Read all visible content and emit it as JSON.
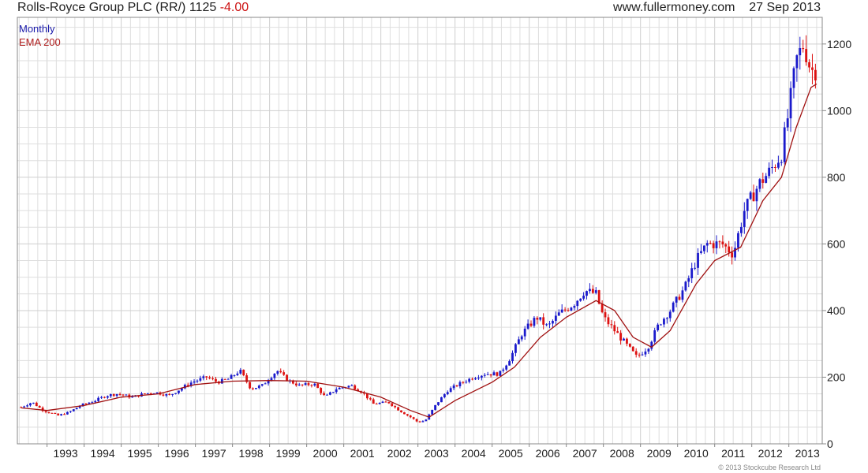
{
  "header": {
    "title": "Rolls-Royce Group PLC (RR/) 1125",
    "change": "-4.00",
    "site": "www.fullermoney.com",
    "date": "27 Sep 2013"
  },
  "legend": {
    "monthly": "Monthly",
    "ema": "EMA 200"
  },
  "copyright": "© 2013 Stockcube Research Ltd",
  "colors": {
    "up": "#1a1acc",
    "down": "#dd1111",
    "ema": "#a01010",
    "grid": "#dedede",
    "axis": "#888888"
  },
  "chart_data": {
    "type": "candlestick",
    "period": "monthly",
    "ylim": [
      0,
      1280
    ],
    "y_ticks": [
      0,
      200,
      400,
      600,
      800,
      1000,
      1200
    ],
    "x_range": [
      1992.2,
      2013.9
    ],
    "x_ticks": [
      "1993",
      "1994",
      "1995",
      "1996",
      "1997",
      "1998",
      "1999",
      "2000",
      "2001",
      "2002",
      "2003",
      "2004",
      "2005",
      "2006",
      "2007",
      "2008",
      "2009",
      "2010",
      "2011",
      "2012",
      "2013"
    ],
    "series": [
      {
        "name": "Monthly",
        "kind": "close",
        "points": [
          [
            1992.3,
            110
          ],
          [
            1992.6,
            125
          ],
          [
            1992.9,
            100
          ],
          [
            1993.3,
            85
          ],
          [
            1993.6,
            95
          ],
          [
            1993.9,
            115
          ],
          [
            1994.3,
            130
          ],
          [
            1994.6,
            145
          ],
          [
            1994.9,
            150
          ],
          [
            1995.3,
            140
          ],
          [
            1995.6,
            150
          ],
          [
            1995.9,
            155
          ],
          [
            1996.3,
            145
          ],
          [
            1996.6,
            165
          ],
          [
            1996.9,
            185
          ],
          [
            1997.3,
            200
          ],
          [
            1997.6,
            185
          ],
          [
            1997.9,
            195
          ],
          [
            1998.2,
            220
          ],
          [
            1998.5,
            165
          ],
          [
            1998.8,
            175
          ],
          [
            1999.2,
            220
          ],
          [
            1999.5,
            190
          ],
          [
            1999.8,
            175
          ],
          [
            2000.2,
            180
          ],
          [
            2000.5,
            140
          ],
          [
            2000.8,
            165
          ],
          [
            2001.2,
            175
          ],
          [
            2001.5,
            155
          ],
          [
            2001.8,
            120
          ],
          [
            2002.2,
            125
          ],
          [
            2002.5,
            100
          ],
          [
            2002.8,
            80
          ],
          [
            2003.0,
            65
          ],
          [
            2003.2,
            70
          ],
          [
            2003.5,
            120
          ],
          [
            2003.8,
            160
          ],
          [
            2004.2,
            185
          ],
          [
            2004.5,
            200
          ],
          [
            2004.8,
            210
          ],
          [
            2005.2,
            210
          ],
          [
            2005.5,
            260
          ],
          [
            2005.8,
            330
          ],
          [
            2006.2,
            380
          ],
          [
            2006.5,
            350
          ],
          [
            2006.8,
            390
          ],
          [
            2007.2,
            420
          ],
          [
            2007.5,
            460
          ],
          [
            2007.8,
            450
          ],
          [
            2008.0,
            380
          ],
          [
            2008.3,
            340
          ],
          [
            2008.6,
            300
          ],
          [
            2008.9,
            260
          ],
          [
            2009.2,
            290
          ],
          [
            2009.5,
            360
          ],
          [
            2009.8,
            400
          ],
          [
            2010.2,
            470
          ],
          [
            2010.5,
            550
          ],
          [
            2010.8,
            600
          ],
          [
            2011.2,
            600
          ],
          [
            2011.5,
            570
          ],
          [
            2011.8,
            700
          ],
          [
            2012.2,
            780
          ],
          [
            2012.5,
            820
          ],
          [
            2012.8,
            870
          ],
          [
            2013.0,
            1000
          ],
          [
            2013.2,
            1150
          ],
          [
            2013.4,
            1200
          ],
          [
            2013.6,
            1120
          ],
          [
            2013.75,
            1125
          ]
        ]
      },
      {
        "name": "EMA 200",
        "kind": "line",
        "points": [
          [
            1992.3,
            108
          ],
          [
            1993.0,
            100
          ],
          [
            1994.0,
            115
          ],
          [
            1995.0,
            140
          ],
          [
            1996.0,
            150
          ],
          [
            1997.0,
            178
          ],
          [
            1998.0,
            188
          ],
          [
            1999.0,
            190
          ],
          [
            2000.0,
            188
          ],
          [
            2001.0,
            170
          ],
          [
            2002.0,
            140
          ],
          [
            2002.8,
            100
          ],
          [
            2003.3,
            80
          ],
          [
            2004.0,
            130
          ],
          [
            2005.0,
            185
          ],
          [
            2005.6,
            230
          ],
          [
            2006.3,
            320
          ],
          [
            2007.0,
            380
          ],
          [
            2007.8,
            430
          ],
          [
            2008.3,
            400
          ],
          [
            2008.8,
            320
          ],
          [
            2009.3,
            290
          ],
          [
            2009.8,
            340
          ],
          [
            2010.5,
            480
          ],
          [
            2011.0,
            550
          ],
          [
            2011.7,
            590
          ],
          [
            2012.3,
            730
          ],
          [
            2012.8,
            800
          ],
          [
            2013.2,
            950
          ],
          [
            2013.6,
            1070
          ],
          [
            2013.75,
            1080
          ]
        ]
      }
    ]
  }
}
